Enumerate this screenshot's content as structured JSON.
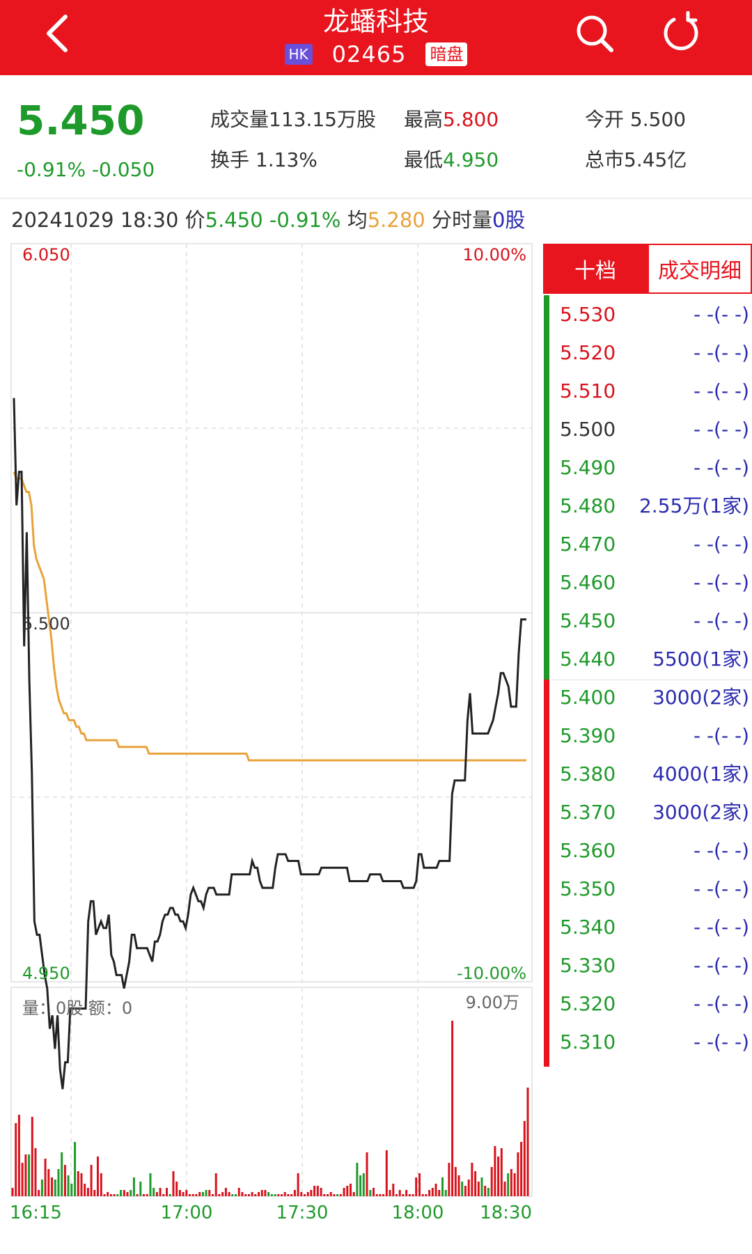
{
  "header": {
    "title": "龙蟠科技",
    "market_badge": "HK",
    "code": "02465",
    "session_badge": "暗盘",
    "icons": [
      "back-icon",
      "search-icon",
      "refresh-icon"
    ]
  },
  "quote": {
    "price": "5.450",
    "change_text": "-0.91% -0.050",
    "volume_label": "成交量",
    "volume_value": "113.15万股",
    "high_label": "最高",
    "high_value": "5.800",
    "open_label": "今开",
    "open_value": "5.500",
    "turnover_label": "换手",
    "turnover_value": "1.13%",
    "low_label": "最低",
    "low_value": "4.950",
    "mcap_label": "总市",
    "mcap_value": "5.45亿"
  },
  "info_line": {
    "datetime": "20241029 18:30",
    "price_label": "价",
    "price": "5.450",
    "pct": "-0.91%",
    "avg_label": "均",
    "avg": "5.280",
    "vol_label": "分时量",
    "vol": "0股"
  },
  "order_book": {
    "tab_active": "十档",
    "tab_inactive": "成交明细",
    "levels": [
      {
        "price": "5.530",
        "qty": "- -(- -)",
        "color": "#d8121b"
      },
      {
        "price": "5.520",
        "qty": "- -(- -)",
        "color": "#d8121b"
      },
      {
        "price": "5.510",
        "qty": "- -(- -)",
        "color": "#d8121b"
      },
      {
        "price": "5.500",
        "qty": "- -(- -)",
        "color": "#333333"
      },
      {
        "price": "5.490",
        "qty": "- -(- -)",
        "color": "#1e9a2a"
      },
      {
        "price": "5.480",
        "qty": "2.55万(1家)",
        "color": "#1e9a2a"
      },
      {
        "price": "5.470",
        "qty": "- -(- -)",
        "color": "#1e9a2a"
      },
      {
        "price": "5.460",
        "qty": "- -(- -)",
        "color": "#1e9a2a"
      },
      {
        "price": "5.450",
        "qty": "- -(- -)",
        "color": "#1e9a2a"
      },
      {
        "price": "5.440",
        "qty": "5500(1家)",
        "color": "#1e9a2a"
      },
      {
        "price": "5.400",
        "qty": "3000(2家)",
        "color": "#1e9a2a"
      },
      {
        "price": "5.390",
        "qty": "- -(- -)",
        "color": "#1e9a2a"
      },
      {
        "price": "5.380",
        "qty": "4000(1家)",
        "color": "#1e9a2a"
      },
      {
        "price": "5.370",
        "qty": "3000(2家)",
        "color": "#1e9a2a"
      },
      {
        "price": "5.360",
        "qty": "- -(- -)",
        "color": "#1e9a2a"
      },
      {
        "price": "5.350",
        "qty": "- -(- -)",
        "color": "#1e9a2a"
      },
      {
        "price": "5.340",
        "qty": "- -(- -)",
        "color": "#1e9a2a"
      },
      {
        "price": "5.330",
        "qty": "- -(- -)",
        "color": "#1e9a2a"
      },
      {
        "price": "5.320",
        "qty": "- -(- -)",
        "color": "#1e9a2a"
      },
      {
        "price": "5.310",
        "qty": "- -(- -)",
        "color": "#1e9a2a"
      }
    ]
  },
  "chart_data": {
    "type": "line",
    "price_axis": {
      "max": "6.050",
      "mid": "5.500",
      "min": "4.950",
      "max_pct": "10.00%",
      "min_pct": "-10.00%",
      "range": [
        4.95,
        6.05
      ]
    },
    "x_ticks": [
      "16:15",
      "17:00",
      "17:30",
      "18:00",
      "18:30"
    ],
    "series": [
      {
        "key": "price",
        "color": "#222222",
        "values": [
          5.82,
          5.66,
          5.71,
          5.71,
          5.45,
          5.62,
          5.4,
          5.26,
          5.04,
          5.02,
          5.02,
          4.99,
          4.96,
          4.94,
          4.88,
          4.9,
          4.85,
          4.9,
          4.82,
          4.79,
          4.83,
          4.83,
          4.91,
          4.91,
          4.91,
          4.91,
          4.91,
          4.91,
          4.91,
          5.04,
          5.07,
          5.07,
          5.02,
          5.03,
          5.04,
          5.03,
          5.03,
          5.05,
          4.99,
          4.98,
          4.96,
          4.96,
          4.96,
          4.94,
          4.96,
          4.98,
          5.02,
          5.02,
          5.0,
          5.0,
          5.0,
          5.0,
          5.0,
          4.99,
          4.98,
          5.01,
          5.01,
          5.02,
          5.04,
          5.05,
          5.05,
          5.06,
          5.06,
          5.05,
          5.05,
          5.04,
          5.04,
          5.03,
          5.05,
          5.08,
          5.09,
          5.08,
          5.07,
          5.07,
          5.06,
          5.08,
          5.09,
          5.09,
          5.09,
          5.08,
          5.08,
          5.08,
          5.08,
          5.08,
          5.08,
          5.11,
          5.11,
          5.11,
          5.11,
          5.11,
          5.11,
          5.11,
          5.11,
          5.13,
          5.12,
          5.12,
          5.1,
          5.09,
          5.09,
          5.09,
          5.09,
          5.09,
          5.12,
          5.14,
          5.14,
          5.14,
          5.14,
          5.13,
          5.13,
          5.13,
          5.13,
          5.13,
          5.11,
          5.11,
          5.11,
          5.11,
          5.11,
          5.11,
          5.11,
          5.11,
          5.12,
          5.12,
          5.12,
          5.12,
          5.12,
          5.12,
          5.12,
          5.12,
          5.12,
          5.12,
          5.12,
          5.1,
          5.1,
          5.1,
          5.1,
          5.1,
          5.1,
          5.1,
          5.1,
          5.11,
          5.11,
          5.11,
          5.11,
          5.11,
          5.1,
          5.1,
          5.1,
          5.1,
          5.1,
          5.1,
          5.1,
          5.1,
          5.09,
          5.09,
          5.09,
          5.09,
          5.09,
          5.1,
          5.14,
          5.14,
          5.12,
          5.12,
          5.12,
          5.12,
          5.12,
          5.12,
          5.13,
          5.13,
          5.13,
          5.13,
          5.13,
          5.23,
          5.25,
          5.25,
          5.25,
          5.25,
          5.25,
          5.34,
          5.38,
          5.32,
          5.32,
          5.32,
          5.32,
          5.32,
          5.32,
          5.32,
          5.33,
          5.34,
          5.36,
          5.38,
          5.41,
          5.41,
          5.4,
          5.39,
          5.36,
          5.36,
          5.36,
          5.44,
          5.49,
          5.49,
          5.49
        ]
      },
      {
        "key": "avg",
        "color": "#e8a23a",
        "values": [
          5.71,
          5.7,
          5.7,
          5.7,
          5.69,
          5.68,
          5.68,
          5.66,
          5.6,
          5.58,
          5.57,
          5.56,
          5.55,
          5.52,
          5.49,
          5.46,
          5.42,
          5.39,
          5.37,
          5.36,
          5.35,
          5.35,
          5.34,
          5.34,
          5.34,
          5.33,
          5.33,
          5.32,
          5.32,
          5.31,
          5.31,
          5.31,
          5.31,
          5.31,
          5.31,
          5.31,
          5.31,
          5.31,
          5.31,
          5.31,
          5.31,
          5.31,
          5.3,
          5.3,
          5.3,
          5.3,
          5.3,
          5.3,
          5.3,
          5.3,
          5.3,
          5.3,
          5.3,
          5.3,
          5.29,
          5.29,
          5.29,
          5.29,
          5.29,
          5.29,
          5.29,
          5.29,
          5.29,
          5.29,
          5.29,
          5.29,
          5.29,
          5.29,
          5.29,
          5.29,
          5.29,
          5.29,
          5.29,
          5.29,
          5.29,
          5.29,
          5.29,
          5.29,
          5.29,
          5.29,
          5.29,
          5.29,
          5.29,
          5.29,
          5.29,
          5.29,
          5.29,
          5.29,
          5.29,
          5.29,
          5.29,
          5.29,
          5.29,
          5.29,
          5.28,
          5.28,
          5.28,
          5.28,
          5.28,
          5.28,
          5.28,
          5.28,
          5.28,
          5.28,
          5.28,
          5.28,
          5.28,
          5.28,
          5.28,
          5.28,
          5.28,
          5.28,
          5.28,
          5.28,
          5.28,
          5.28,
          5.28,
          5.28,
          5.28,
          5.28,
          5.28,
          5.28,
          5.28,
          5.28,
          5.28,
          5.28,
          5.28,
          5.28,
          5.28,
          5.28,
          5.28,
          5.28,
          5.28,
          5.28,
          5.28,
          5.28,
          5.28,
          5.28,
          5.28,
          5.28,
          5.28,
          5.28,
          5.28,
          5.28,
          5.28,
          5.28,
          5.28,
          5.28,
          5.28,
          5.28,
          5.28,
          5.28,
          5.28,
          5.28,
          5.28,
          5.28,
          5.28,
          5.28,
          5.28,
          5.28,
          5.28,
          5.28,
          5.28,
          5.28,
          5.28,
          5.28,
          5.28,
          5.28,
          5.28,
          5.28,
          5.28,
          5.28,
          5.28,
          5.28,
          5.28,
          5.28,
          5.28,
          5.28,
          5.28,
          5.28,
          5.28,
          5.28,
          5.28,
          5.28,
          5.28,
          5.28,
          5.28,
          5.28,
          5.28,
          5.28,
          5.28,
          5.28,
          5.28,
          5.28,
          5.28,
          5.28,
          5.28,
          5.28,
          5.28,
          5.28,
          5.28,
          5.28,
          5.28,
          5.28,
          5.28,
          5.28
        ]
      }
    ],
    "volume": {
      "label": "量：0股 额：0",
      "max_label": "9.00万",
      "max": 90000,
      "bars": [
        [
          4000,
          "r"
        ],
        [
          35000,
          "r"
        ],
        [
          39000,
          "r"
        ],
        [
          16000,
          "r"
        ],
        [
          20000,
          "r"
        ],
        [
          20000,
          "g"
        ],
        [
          38000,
          "r"
        ],
        [
          23000,
          "r"
        ],
        [
          3000,
          "r"
        ],
        [
          8000,
          "g"
        ],
        [
          18000,
          "r"
        ],
        [
          13000,
          "r"
        ],
        [
          9000,
          "r"
        ],
        [
          8000,
          "g"
        ],
        [
          13000,
          "g"
        ],
        [
          21000,
          "g"
        ],
        [
          15000,
          "r"
        ],
        [
          10000,
          "g"
        ],
        [
          6000,
          "g"
        ],
        [
          26000,
          "g"
        ],
        [
          12000,
          "r"
        ],
        [
          11000,
          "r"
        ],
        [
          6000,
          "r"
        ],
        [
          4000,
          "r"
        ],
        [
          15000,
          "r"
        ],
        [
          3000,
          "r"
        ],
        [
          19000,
          "r"
        ],
        [
          11000,
          "r"
        ],
        [
          1000,
          "r"
        ],
        [
          2000,
          "r"
        ],
        [
          1000,
          "r"
        ],
        [
          1000,
          "r"
        ],
        [
          1000,
          "g"
        ],
        [
          3000,
          "g"
        ],
        [
          3000,
          "r"
        ],
        [
          2000,
          "r"
        ],
        [
          3000,
          "g"
        ],
        [
          9000,
          "g"
        ],
        [
          1000,
          "r"
        ],
        [
          7000,
          "g"
        ],
        [
          1000,
          "r"
        ],
        [
          1000,
          "r"
        ],
        [
          11000,
          "g"
        ],
        [
          4000,
          "g"
        ],
        [
          2000,
          "r"
        ],
        [
          4000,
          "r"
        ],
        [
          1000,
          "r"
        ],
        [
          4000,
          "r"
        ],
        [
          1000,
          "g"
        ],
        [
          12000,
          "r"
        ],
        [
          7000,
          "r"
        ],
        [
          3000,
          "r"
        ],
        [
          2000,
          "r"
        ],
        [
          3000,
          "r"
        ],
        [
          1000,
          "r"
        ],
        [
          1000,
          "r"
        ],
        [
          1000,
          "r"
        ],
        [
          2000,
          "r"
        ],
        [
          2000,
          "g"
        ],
        [
          3000,
          "g"
        ],
        [
          3000,
          "r"
        ],
        [
          1000,
          "r"
        ],
        [
          11000,
          "r"
        ],
        [
          1000,
          "r"
        ],
        [
          2000,
          "r"
        ],
        [
          4000,
          "r"
        ],
        [
          2000,
          "r"
        ],
        [
          1000,
          "g"
        ],
        [
          1000,
          "g"
        ],
        [
          4000,
          "r"
        ],
        [
          2000,
          "r"
        ],
        [
          1000,
          "r"
        ],
        [
          1000,
          "r"
        ],
        [
          2000,
          "r"
        ],
        [
          1000,
          "r"
        ],
        [
          2000,
          "r"
        ],
        [
          3000,
          "r"
        ],
        [
          3000,
          "r"
        ],
        [
          2000,
          "g"
        ],
        [
          1000,
          "g"
        ],
        [
          1000,
          "g"
        ],
        [
          1000,
          "r"
        ],
        [
          1000,
          "r"
        ],
        [
          2000,
          "r"
        ],
        [
          1000,
          "r"
        ],
        [
          1000,
          "r"
        ],
        [
          3000,
          "r"
        ],
        [
          11000,
          "r"
        ],
        [
          2000,
          "r"
        ],
        [
          1000,
          "r"
        ],
        [
          2000,
          "r"
        ],
        [
          3000,
          "r"
        ],
        [
          5000,
          "r"
        ],
        [
          5000,
          "r"
        ],
        [
          4000,
          "r"
        ],
        [
          1000,
          "r"
        ],
        [
          1000,
          "r"
        ],
        [
          2000,
          "r"
        ],
        [
          1000,
          "r"
        ],
        [
          1000,
          "g"
        ],
        [
          1000,
          "r"
        ],
        [
          4000,
          "r"
        ],
        [
          5000,
          "r"
        ],
        [
          6000,
          "r"
        ],
        [
          2000,
          "r"
        ],
        [
          16000,
          "g"
        ],
        [
          10000,
          "g"
        ],
        [
          11000,
          "g"
        ],
        [
          21000,
          "r"
        ],
        [
          3000,
          "g"
        ],
        [
          4000,
          "r"
        ],
        [
          1000,
          "r"
        ],
        [
          1000,
          "r"
        ],
        [
          1000,
          "r"
        ],
        [
          22000,
          "r"
        ],
        [
          3000,
          "r"
        ],
        [
          6000,
          "r"
        ],
        [
          1000,
          "r"
        ],
        [
          3000,
          "r"
        ],
        [
          1000,
          "r"
        ],
        [
          3000,
          "r"
        ],
        [
          1000,
          "r"
        ],
        [
          1000,
          "r"
        ],
        [
          9000,
          "r"
        ],
        [
          11000,
          "r"
        ],
        [
          1000,
          "r"
        ],
        [
          1000,
          "r"
        ],
        [
          3000,
          "r"
        ],
        [
          4000,
          "r"
        ],
        [
          6000,
          "r"
        ],
        [
          3000,
          "r"
        ],
        [
          9000,
          "g"
        ],
        [
          3000,
          "g"
        ],
        [
          16000,
          "r"
        ],
        [
          84000,
          "r"
        ],
        [
          14000,
          "r"
        ],
        [
          10000,
          "r"
        ],
        [
          7000,
          "g"
        ],
        [
          5000,
          "r"
        ],
        [
          8000,
          "r"
        ],
        [
          16000,
          "r"
        ],
        [
          12000,
          "r"
        ],
        [
          7000,
          "r"
        ],
        [
          9000,
          "g"
        ],
        [
          5000,
          "r"
        ],
        [
          4000,
          "g"
        ],
        [
          14000,
          "r"
        ],
        [
          24000,
          "r"
        ],
        [
          19000,
          "r"
        ],
        [
          23000,
          "r"
        ],
        [
          7000,
          "r"
        ],
        [
          11000,
          "g"
        ],
        [
          13000,
          "r"
        ],
        [
          11000,
          "r"
        ],
        [
          21000,
          "r"
        ],
        [
          26000,
          "r"
        ],
        [
          36000,
          "r"
        ],
        [
          52000,
          "r"
        ]
      ]
    }
  }
}
